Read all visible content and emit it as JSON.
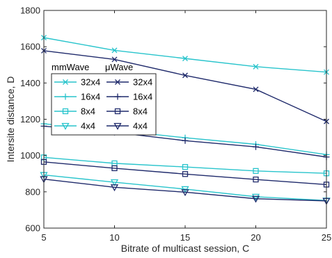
{
  "chart_data": {
    "type": "line",
    "title": "",
    "xlabel": "Bitrate of multicast session, C",
    "ylabel": "Intersite distance, D",
    "x": [
      5,
      10,
      15,
      20,
      25
    ],
    "xlim": [
      5,
      25
    ],
    "ylim": [
      600,
      1800
    ],
    "xticks": [
      5,
      10,
      15,
      20,
      25
    ],
    "yticks": [
      600,
      800,
      1000,
      1200,
      1400,
      1600,
      1800
    ],
    "grid": false,
    "legend_position": "upper-left",
    "legend_group_labels": [
      "mmWave",
      "μWave"
    ],
    "colors": {
      "mmWave": "#28C4CC",
      "uWave": "#1F2A6B"
    },
    "series": [
      {
        "name": "32x4",
        "group": "mmWave",
        "marker": "x",
        "values": [
          1650,
          1580,
          1535,
          1490,
          1460
        ]
      },
      {
        "name": "32x4",
        "group": "μWave",
        "marker": "x",
        "values": [
          1578,
          1530,
          1442,
          1365,
          1188
        ]
      },
      {
        "name": "16x4",
        "group": "mmWave",
        "marker": "+",
        "values": [
          1175,
          1140,
          1098,
          1062,
          1005
        ]
      },
      {
        "name": "16x4",
        "group": "μWave",
        "marker": "+",
        "values": [
          1162,
          1128,
          1082,
          1048,
          992
        ]
      },
      {
        "name": "8x4",
        "group": "mmWave",
        "marker": "square",
        "values": [
          990,
          957,
          937,
          915,
          902
        ]
      },
      {
        "name": "8x4",
        "group": "μWave",
        "marker": "square",
        "values": [
          965,
          930,
          898,
          868,
          840
        ]
      },
      {
        "name": "4x4",
        "group": "mmWave",
        "marker": "triangle-down",
        "values": [
          893,
          853,
          815,
          773,
          752
        ]
      },
      {
        "name": "4x4",
        "group": "μWave",
        "marker": "triangle-down",
        "values": [
          870,
          825,
          798,
          762,
          750
        ]
      }
    ]
  }
}
